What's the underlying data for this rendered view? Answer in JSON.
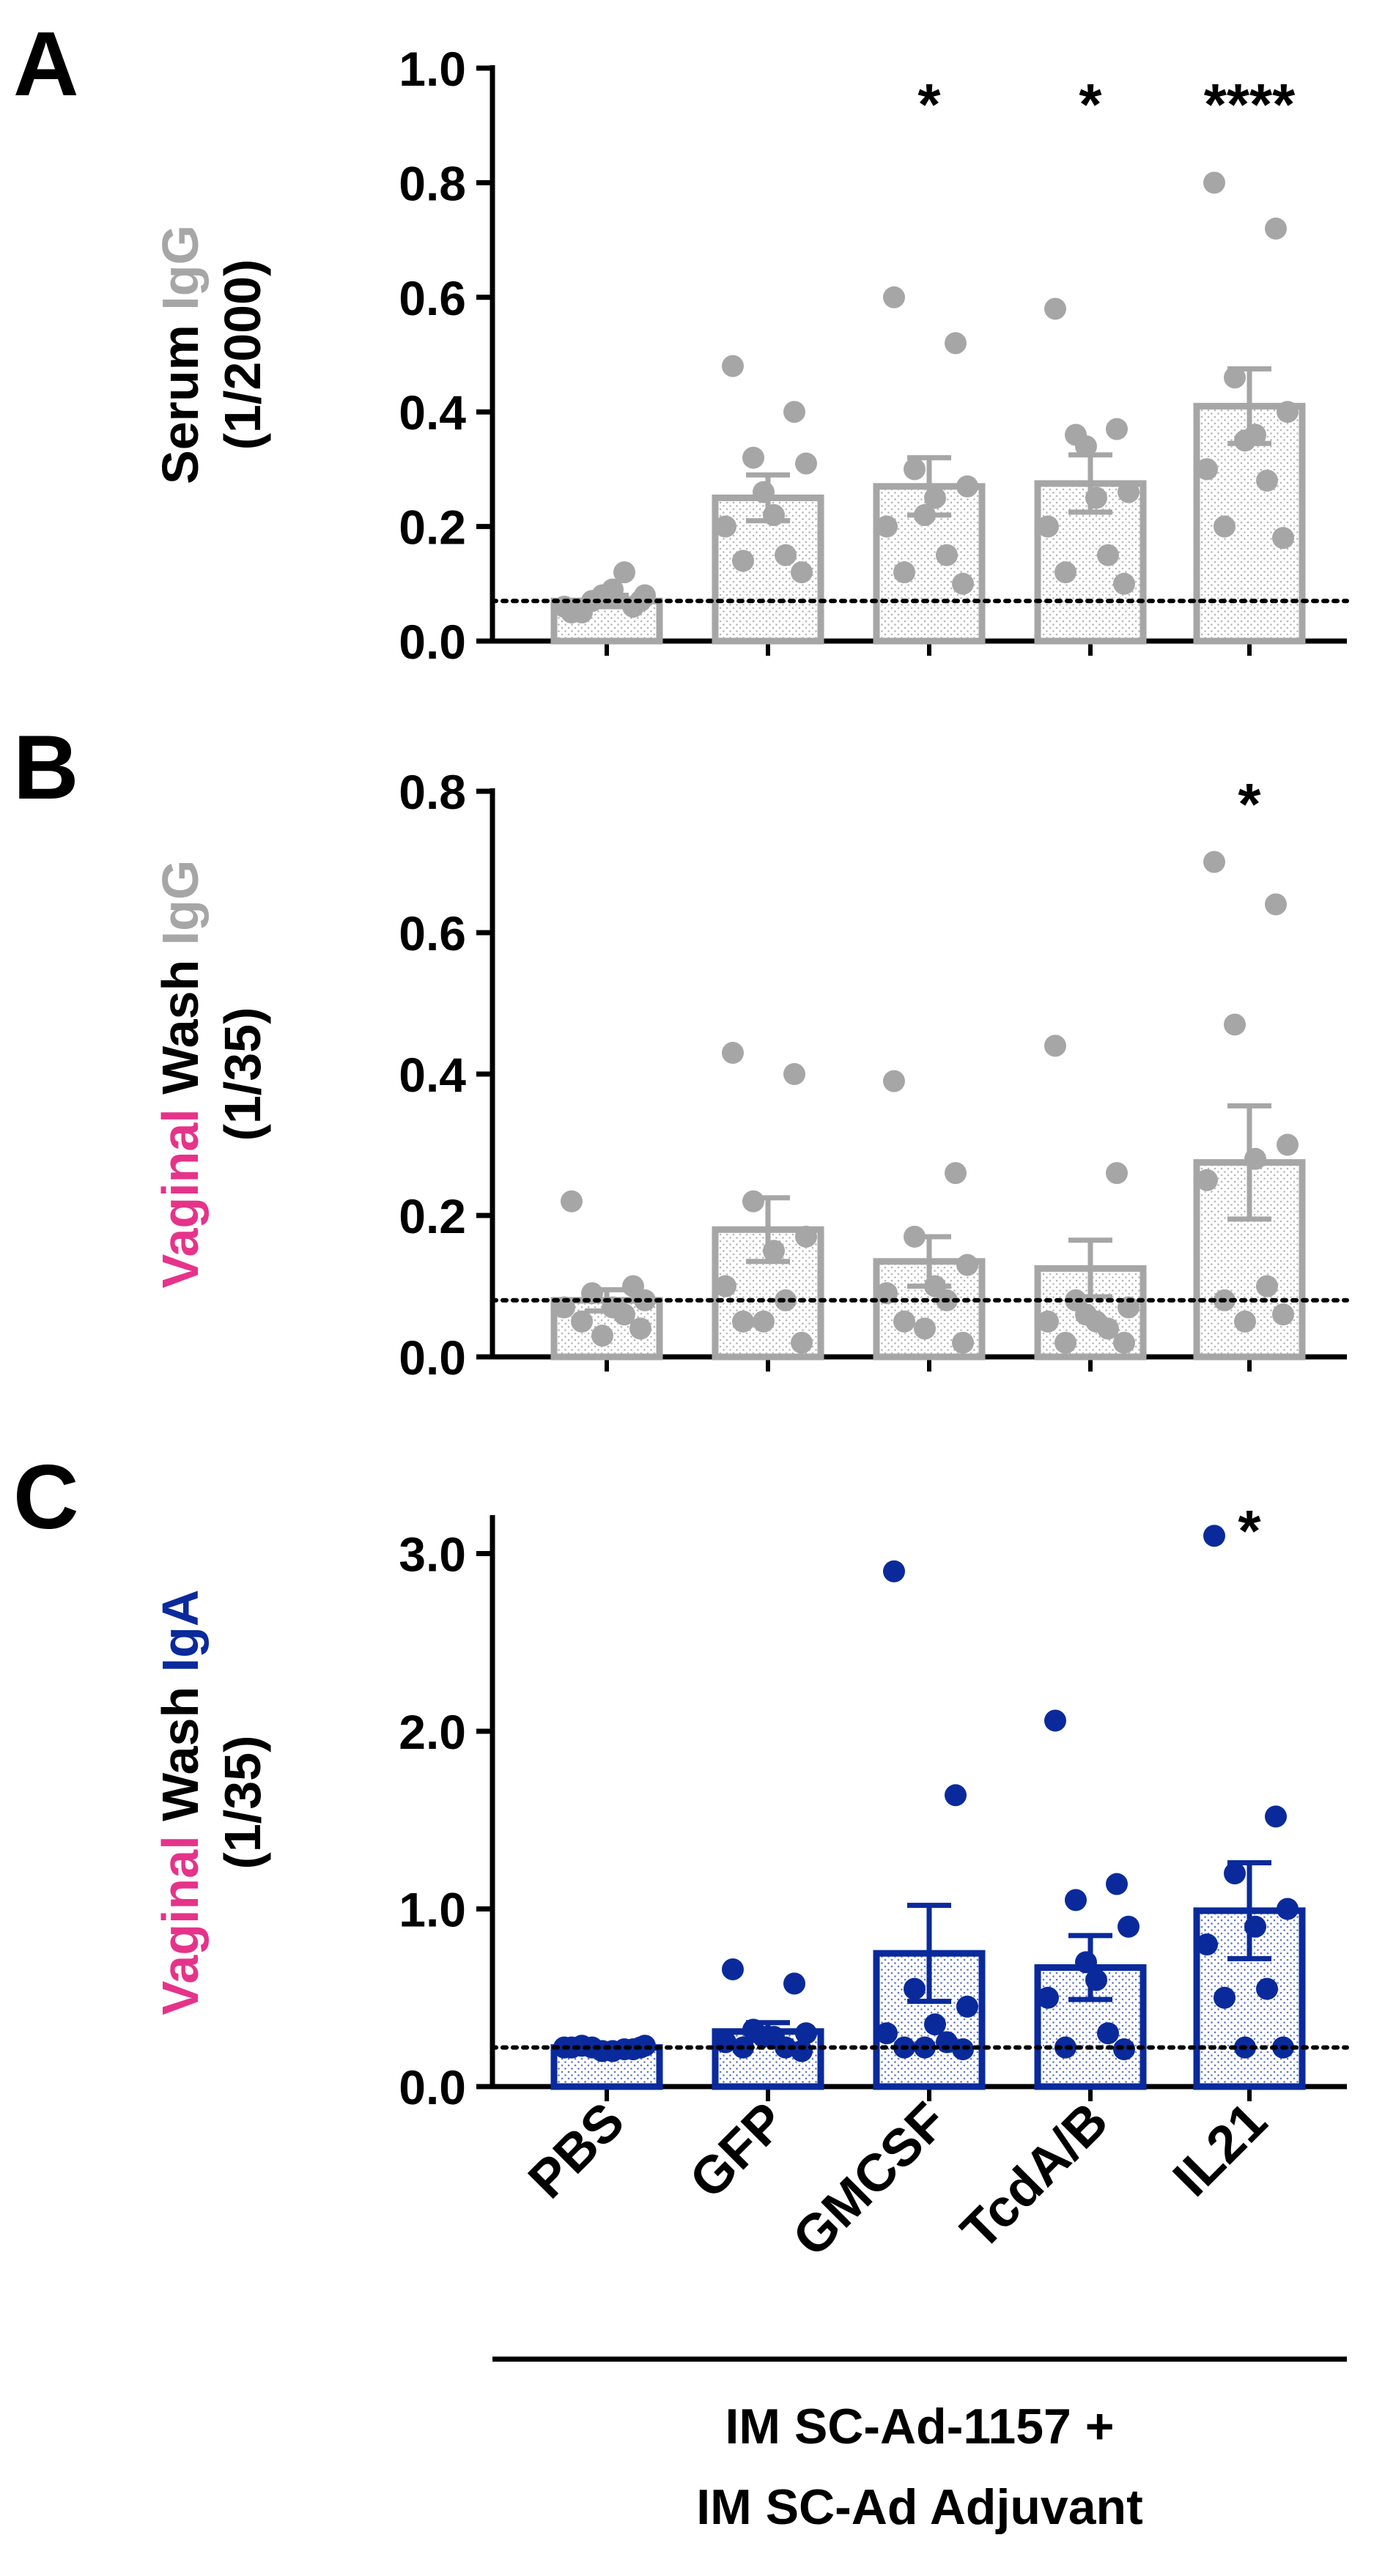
{
  "colors": {
    "gray": "#A6A6A6",
    "navy": "#0A2A9C",
    "pink": "#E6338A",
    "black": "#000000"
  },
  "categories": [
    "PBS",
    "GFP",
    "GMCSF",
    "TcdA/B",
    "IL21"
  ],
  "footer": {
    "line1": "IM SC-Ad-1157 +",
    "line2": "IM SC-Ad Adjuvant"
  },
  "chart_data": [
    {
      "panel": "A",
      "type": "bar",
      "categories": [
        "PBS",
        "GFP",
        "GMCSF",
        "TcdA/B",
        "IL21"
      ],
      "ylabel_lines": [
        [
          {
            "text": "Serum ",
            "color": "black"
          },
          {
            "text": "IgG",
            "color": "gray"
          }
        ],
        [
          {
            "text": "(1/2000)",
            "color": "black"
          }
        ]
      ],
      "ylim": [
        0,
        1.0
      ],
      "yticks": [
        0.0,
        0.2,
        0.4,
        0.6,
        0.8,
        1.0
      ],
      "tick_labels": [
        "0.0",
        "0.2",
        "0.4",
        "0.6",
        "0.8",
        "1.0"
      ],
      "baseline": 0.07,
      "color": "gray",
      "means": [
        0.07,
        0.25,
        0.27,
        0.275,
        0.41
      ],
      "sem": [
        0.01,
        0.04,
        0.05,
        0.05,
        0.065
      ],
      "significance": [
        "",
        "",
        "*",
        "*",
        "****"
      ],
      "points": [
        [
          0.05,
          0.06,
          0.07,
          0.08,
          0.09,
          0.06,
          0.12,
          0.05,
          0.07,
          0.08
        ],
        [
          0.48,
          0.4,
          0.32,
          0.31,
          0.22,
          0.2,
          0.15,
          0.14,
          0.12,
          0.26
        ],
        [
          0.6,
          0.52,
          0.3,
          0.27,
          0.25,
          0.2,
          0.15,
          0.12,
          0.1,
          0.22
        ],
        [
          0.58,
          0.37,
          0.36,
          0.26,
          0.25,
          0.2,
          0.15,
          0.12,
          0.1,
          0.34
        ],
        [
          0.8,
          0.72,
          0.46,
          0.4,
          0.36,
          0.3,
          0.28,
          0.2,
          0.18,
          0.35
        ]
      ]
    },
    {
      "panel": "B",
      "type": "bar",
      "categories": [
        "PBS",
        "GFP",
        "GMCSF",
        "TcdA/B",
        "IL21"
      ],
      "ylabel_lines": [
        [
          {
            "text": "Vaginal ",
            "color": "pink"
          },
          {
            "text": "Wash ",
            "color": "black"
          },
          {
            "text": "IgG",
            "color": "gray"
          }
        ],
        [
          {
            "text": "(1/35)",
            "color": "black"
          }
        ]
      ],
      "ylim": [
        0,
        0.8
      ],
      "yticks": [
        0.0,
        0.2,
        0.4,
        0.6,
        0.8
      ],
      "tick_labels": [
        "0.0",
        "0.2",
        "0.4",
        "0.6",
        "0.8"
      ],
      "baseline": 0.08,
      "color": "gray",
      "means": [
        0.08,
        0.18,
        0.135,
        0.125,
        0.275
      ],
      "sem": [
        0.015,
        0.045,
        0.035,
        0.04,
        0.08
      ],
      "significance": [
        "",
        "",
        "",
        "",
        "*"
      ],
      "points": [
        [
          0.22,
          0.1,
          0.09,
          0.08,
          0.07,
          0.07,
          0.06,
          0.05,
          0.04,
          0.03
        ],
        [
          0.43,
          0.4,
          0.22,
          0.17,
          0.15,
          0.1,
          0.08,
          0.05,
          0.02,
          0.05
        ],
        [
          0.39,
          0.26,
          0.17,
          0.13,
          0.1,
          0.09,
          0.08,
          0.05,
          0.02,
          0.04
        ],
        [
          0.44,
          0.26,
          0.08,
          0.07,
          0.05,
          0.05,
          0.04,
          0.02,
          0.02,
          0.06
        ],
        [
          0.7,
          0.64,
          0.47,
          0.3,
          0.28,
          0.25,
          0.1,
          0.08,
          0.06,
          0.05
        ]
      ]
    },
    {
      "panel": "C",
      "type": "bar",
      "categories": [
        "PBS",
        "GFP",
        "GMCSF",
        "TcdA/B",
        "IL21"
      ],
      "ylabel_lines": [
        [
          {
            "text": "Vaginal ",
            "color": "pink"
          },
          {
            "text": "Wash ",
            "color": "black"
          },
          {
            "text": "IgA",
            "color": "navy"
          }
        ],
        [
          {
            "text": "(1/35)",
            "color": "black"
          }
        ]
      ],
      "ylim": [
        0,
        3.2
      ],
      "yticks": [
        0.0,
        1.0,
        2.0,
        3.0
      ],
      "tick_labels": [
        "0.0",
        "1.0",
        "2.0",
        "3.0"
      ],
      "baseline": 0.22,
      "color": "navy",
      "means": [
        0.22,
        0.31,
        0.75,
        0.67,
        0.99
      ],
      "sem": [
        0.01,
        0.05,
        0.27,
        0.18,
        0.27
      ],
      "significance": [
        "",
        "",
        "",
        "",
        "*"
      ],
      "points": [
        [
          0.22,
          0.21,
          0.22,
          0.23,
          0.2,
          0.22,
          0.21,
          0.23,
          0.22,
          0.2
        ],
        [
          0.66,
          0.58,
          0.32,
          0.3,
          0.28,
          0.25,
          0.22,
          0.22,
          0.2,
          0.28
        ],
        [
          2.9,
          1.64,
          0.55,
          0.45,
          0.35,
          0.3,
          0.25,
          0.22,
          0.21,
          0.22
        ],
        [
          2.06,
          1.14,
          1.05,
          0.9,
          0.6,
          0.5,
          0.3,
          0.22,
          0.21,
          0.7
        ],
        [
          3.1,
          1.52,
          1.2,
          1.0,
          0.9,
          0.8,
          0.55,
          0.5,
          0.22,
          0.22
        ]
      ]
    }
  ]
}
